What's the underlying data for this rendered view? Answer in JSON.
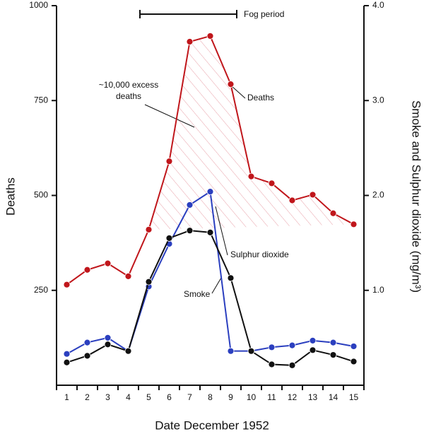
{
  "chart_data": {
    "type": "line",
    "xlabel": "Date December 1952",
    "ylabel": "Deaths",
    "y2label": "Smoke and Sulphur dioxide (mg/m³)",
    "categories": [
      "1",
      "2",
      "3",
      "4",
      "5",
      "6",
      "7",
      "8",
      "9",
      "10",
      "11",
      "12",
      "13",
      "14",
      "15"
    ],
    "series": [
      {
        "name": "Deaths",
        "color": "#c0161b",
        "values": [
          265,
          304,
          321,
          287,
          410,
          590,
          905,
          920,
          793,
          550,
          532,
          487,
          502,
          453,
          424
        ]
      },
      {
        "name": "Sulphur dioxide",
        "color": "#2b3fbf",
        "axis": "y2",
        "values": [
          0.33,
          0.45,
          0.5,
          0.36,
          1.04,
          1.49,
          1.9,
          2.04,
          0.36,
          0.36,
          0.4,
          0.42,
          0.47,
          0.45,
          0.41
        ]
      },
      {
        "name": "Smoke",
        "color": "#111111",
        "axis": "y2",
        "values": [
          0.24,
          0.31,
          0.43,
          0.36,
          1.09,
          1.55,
          1.63,
          1.61,
          1.13,
          0.36,
          0.22,
          0.21,
          0.37,
          0.32,
          0.25
        ]
      }
    ],
    "ylim": [
      0,
      1000
    ],
    "yticks": [
      250,
      500,
      750,
      1000
    ],
    "y2lim": [
      0,
      4
    ],
    "y2ticks": [
      {
        "value": 1,
        "label": "1.0"
      },
      {
        "value": 2,
        "label": "2.0"
      },
      {
        "value": 3,
        "label": "3.0"
      },
      {
        "value": 4,
        "label": "4.0"
      }
    ],
    "annotations": {
      "fog": "Fog period",
      "excess": [
        "~10,000 excess",
        "deaths"
      ]
    }
  }
}
